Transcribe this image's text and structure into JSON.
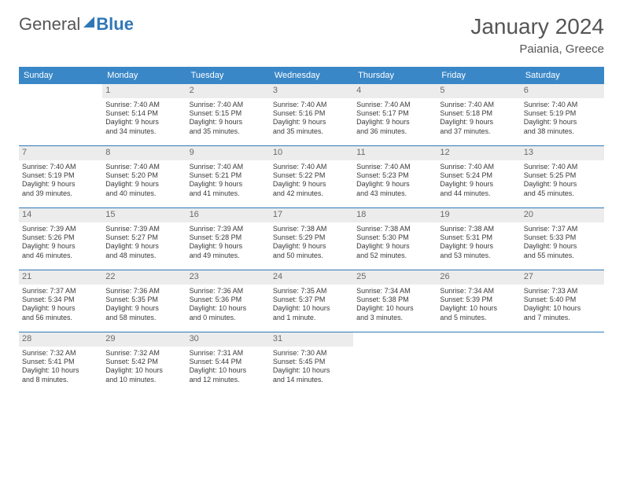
{
  "brand": {
    "part1": "General",
    "part2": "Blue"
  },
  "header": {
    "month_title": "January 2024",
    "location": "Paiania, Greece"
  },
  "colors": {
    "header_bg": "#3a87c7",
    "header_text": "#ffffff",
    "daynum_bg": "#ececec",
    "daynum_text": "#6a6a6a",
    "rule": "#2f78b7",
    "body_text": "#3a3a3a"
  },
  "day_names": [
    "Sunday",
    "Monday",
    "Tuesday",
    "Wednesday",
    "Thursday",
    "Friday",
    "Saturday"
  ],
  "weeks": [
    [
      null,
      {
        "n": "1",
        "sr": "Sunrise: 7:40 AM",
        "ss": "Sunset: 5:14 PM",
        "dl1": "Daylight: 9 hours",
        "dl2": "and 34 minutes."
      },
      {
        "n": "2",
        "sr": "Sunrise: 7:40 AM",
        "ss": "Sunset: 5:15 PM",
        "dl1": "Daylight: 9 hours",
        "dl2": "and 35 minutes."
      },
      {
        "n": "3",
        "sr": "Sunrise: 7:40 AM",
        "ss": "Sunset: 5:16 PM",
        "dl1": "Daylight: 9 hours",
        "dl2": "and 35 minutes."
      },
      {
        "n": "4",
        "sr": "Sunrise: 7:40 AM",
        "ss": "Sunset: 5:17 PM",
        "dl1": "Daylight: 9 hours",
        "dl2": "and 36 minutes."
      },
      {
        "n": "5",
        "sr": "Sunrise: 7:40 AM",
        "ss": "Sunset: 5:18 PM",
        "dl1": "Daylight: 9 hours",
        "dl2": "and 37 minutes."
      },
      {
        "n": "6",
        "sr": "Sunrise: 7:40 AM",
        "ss": "Sunset: 5:19 PM",
        "dl1": "Daylight: 9 hours",
        "dl2": "and 38 minutes."
      }
    ],
    [
      {
        "n": "7",
        "sr": "Sunrise: 7:40 AM",
        "ss": "Sunset: 5:19 PM",
        "dl1": "Daylight: 9 hours",
        "dl2": "and 39 minutes."
      },
      {
        "n": "8",
        "sr": "Sunrise: 7:40 AM",
        "ss": "Sunset: 5:20 PM",
        "dl1": "Daylight: 9 hours",
        "dl2": "and 40 minutes."
      },
      {
        "n": "9",
        "sr": "Sunrise: 7:40 AM",
        "ss": "Sunset: 5:21 PM",
        "dl1": "Daylight: 9 hours",
        "dl2": "and 41 minutes."
      },
      {
        "n": "10",
        "sr": "Sunrise: 7:40 AM",
        "ss": "Sunset: 5:22 PM",
        "dl1": "Daylight: 9 hours",
        "dl2": "and 42 minutes."
      },
      {
        "n": "11",
        "sr": "Sunrise: 7:40 AM",
        "ss": "Sunset: 5:23 PM",
        "dl1": "Daylight: 9 hours",
        "dl2": "and 43 minutes."
      },
      {
        "n": "12",
        "sr": "Sunrise: 7:40 AM",
        "ss": "Sunset: 5:24 PM",
        "dl1": "Daylight: 9 hours",
        "dl2": "and 44 minutes."
      },
      {
        "n": "13",
        "sr": "Sunrise: 7:40 AM",
        "ss": "Sunset: 5:25 PM",
        "dl1": "Daylight: 9 hours",
        "dl2": "and 45 minutes."
      }
    ],
    [
      {
        "n": "14",
        "sr": "Sunrise: 7:39 AM",
        "ss": "Sunset: 5:26 PM",
        "dl1": "Daylight: 9 hours",
        "dl2": "and 46 minutes."
      },
      {
        "n": "15",
        "sr": "Sunrise: 7:39 AM",
        "ss": "Sunset: 5:27 PM",
        "dl1": "Daylight: 9 hours",
        "dl2": "and 48 minutes."
      },
      {
        "n": "16",
        "sr": "Sunrise: 7:39 AM",
        "ss": "Sunset: 5:28 PM",
        "dl1": "Daylight: 9 hours",
        "dl2": "and 49 minutes."
      },
      {
        "n": "17",
        "sr": "Sunrise: 7:38 AM",
        "ss": "Sunset: 5:29 PM",
        "dl1": "Daylight: 9 hours",
        "dl2": "and 50 minutes."
      },
      {
        "n": "18",
        "sr": "Sunrise: 7:38 AM",
        "ss": "Sunset: 5:30 PM",
        "dl1": "Daylight: 9 hours",
        "dl2": "and 52 minutes."
      },
      {
        "n": "19",
        "sr": "Sunrise: 7:38 AM",
        "ss": "Sunset: 5:31 PM",
        "dl1": "Daylight: 9 hours",
        "dl2": "and 53 minutes."
      },
      {
        "n": "20",
        "sr": "Sunrise: 7:37 AM",
        "ss": "Sunset: 5:33 PM",
        "dl1": "Daylight: 9 hours",
        "dl2": "and 55 minutes."
      }
    ],
    [
      {
        "n": "21",
        "sr": "Sunrise: 7:37 AM",
        "ss": "Sunset: 5:34 PM",
        "dl1": "Daylight: 9 hours",
        "dl2": "and 56 minutes."
      },
      {
        "n": "22",
        "sr": "Sunrise: 7:36 AM",
        "ss": "Sunset: 5:35 PM",
        "dl1": "Daylight: 9 hours",
        "dl2": "and 58 minutes."
      },
      {
        "n": "23",
        "sr": "Sunrise: 7:36 AM",
        "ss": "Sunset: 5:36 PM",
        "dl1": "Daylight: 10 hours",
        "dl2": "and 0 minutes."
      },
      {
        "n": "24",
        "sr": "Sunrise: 7:35 AM",
        "ss": "Sunset: 5:37 PM",
        "dl1": "Daylight: 10 hours",
        "dl2": "and 1 minute."
      },
      {
        "n": "25",
        "sr": "Sunrise: 7:34 AM",
        "ss": "Sunset: 5:38 PM",
        "dl1": "Daylight: 10 hours",
        "dl2": "and 3 minutes."
      },
      {
        "n": "26",
        "sr": "Sunrise: 7:34 AM",
        "ss": "Sunset: 5:39 PM",
        "dl1": "Daylight: 10 hours",
        "dl2": "and 5 minutes."
      },
      {
        "n": "27",
        "sr": "Sunrise: 7:33 AM",
        "ss": "Sunset: 5:40 PM",
        "dl1": "Daylight: 10 hours",
        "dl2": "and 7 minutes."
      }
    ],
    [
      {
        "n": "28",
        "sr": "Sunrise: 7:32 AM",
        "ss": "Sunset: 5:41 PM",
        "dl1": "Daylight: 10 hours",
        "dl2": "and 8 minutes."
      },
      {
        "n": "29",
        "sr": "Sunrise: 7:32 AM",
        "ss": "Sunset: 5:42 PM",
        "dl1": "Daylight: 10 hours",
        "dl2": "and 10 minutes."
      },
      {
        "n": "30",
        "sr": "Sunrise: 7:31 AM",
        "ss": "Sunset: 5:44 PM",
        "dl1": "Daylight: 10 hours",
        "dl2": "and 12 minutes."
      },
      {
        "n": "31",
        "sr": "Sunrise: 7:30 AM",
        "ss": "Sunset: 5:45 PM",
        "dl1": "Daylight: 10 hours",
        "dl2": "and 14 minutes."
      },
      null,
      null,
      null
    ]
  ]
}
